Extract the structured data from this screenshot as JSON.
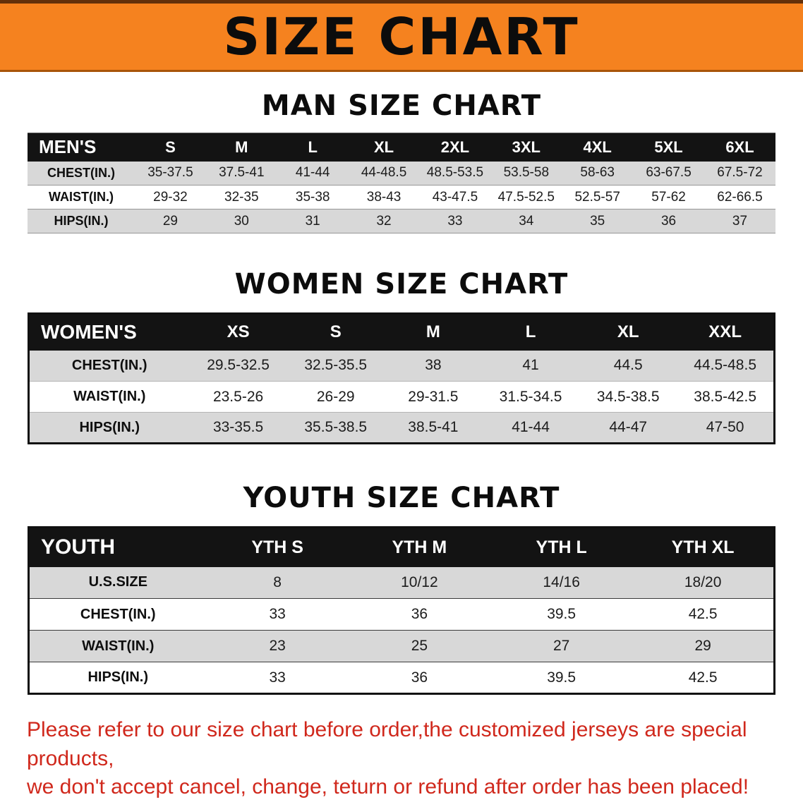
{
  "banner": {
    "title": "SIZE CHART",
    "bg_color": "#f5821f",
    "text_color": "#0c0c0c"
  },
  "sections": [
    {
      "id": "men",
      "heading": "MAN SIZE CHART",
      "table": {
        "header": [
          "MEN'S",
          "S",
          "M",
          "L",
          "XL",
          "2XL",
          "3XL",
          "4XL",
          "5XL",
          "6XL"
        ],
        "rows": [
          [
            "CHEST(IN.)",
            "35-37.5",
            "37.5-41",
            "41-44",
            "44-48.5",
            "48.5-53.5",
            "53.5-58",
            "58-63",
            "63-67.5",
            "67.5-72"
          ],
          [
            "WAIST(IN.)",
            "29-32",
            "32-35",
            "35-38",
            "38-43",
            "43-47.5",
            "47.5-52.5",
            "52.5-57",
            "57-62",
            "62-66.5"
          ],
          [
            "HIPS(IN.)",
            "29",
            "30",
            "31",
            "32",
            "33",
            "34",
            "35",
            "36",
            "37"
          ]
        ]
      }
    },
    {
      "id": "women",
      "heading": "WOMEN SIZE CHART",
      "table": {
        "header": [
          "WOMEN'S",
          "XS",
          "S",
          "M",
          "L",
          "XL",
          "XXL"
        ],
        "rows": [
          [
            "CHEST(IN.)",
            "29.5-32.5",
            "32.5-35.5",
            "38",
            "41",
            "44.5",
            "44.5-48.5"
          ],
          [
            "WAIST(IN.)",
            "23.5-26",
            "26-29",
            "29-31.5",
            "31.5-34.5",
            "34.5-38.5",
            "38.5-42.5"
          ],
          [
            "HIPS(IN.)",
            "33-35.5",
            "35.5-38.5",
            "38.5-41",
            "41-44",
            "44-47",
            "47-50"
          ]
        ]
      }
    },
    {
      "id": "youth",
      "heading": "YOUTH SIZE CHART",
      "table": {
        "header": [
          "YOUTH",
          "YTH S",
          "YTH M",
          "YTH L",
          "YTH XL"
        ],
        "rows": [
          [
            "U.S.SIZE",
            "8",
            "10/12",
            "14/16",
            "18/20"
          ],
          [
            "CHEST(IN.)",
            "33",
            "36",
            "39.5",
            "42.5"
          ],
          [
            "WAIST(IN.)",
            "23",
            "25",
            "27",
            "29"
          ],
          [
            "HIPS(IN.)",
            "33",
            "36",
            "39.5",
            "42.5"
          ]
        ]
      }
    }
  ],
  "disclaimer": {
    "line1": "Please refer to our size chart before order,the customized jerseys are special products,",
    "line2": "we don't accept cancel, change, teturn or refund after order has been placed!",
    "color": "#d0281c"
  }
}
